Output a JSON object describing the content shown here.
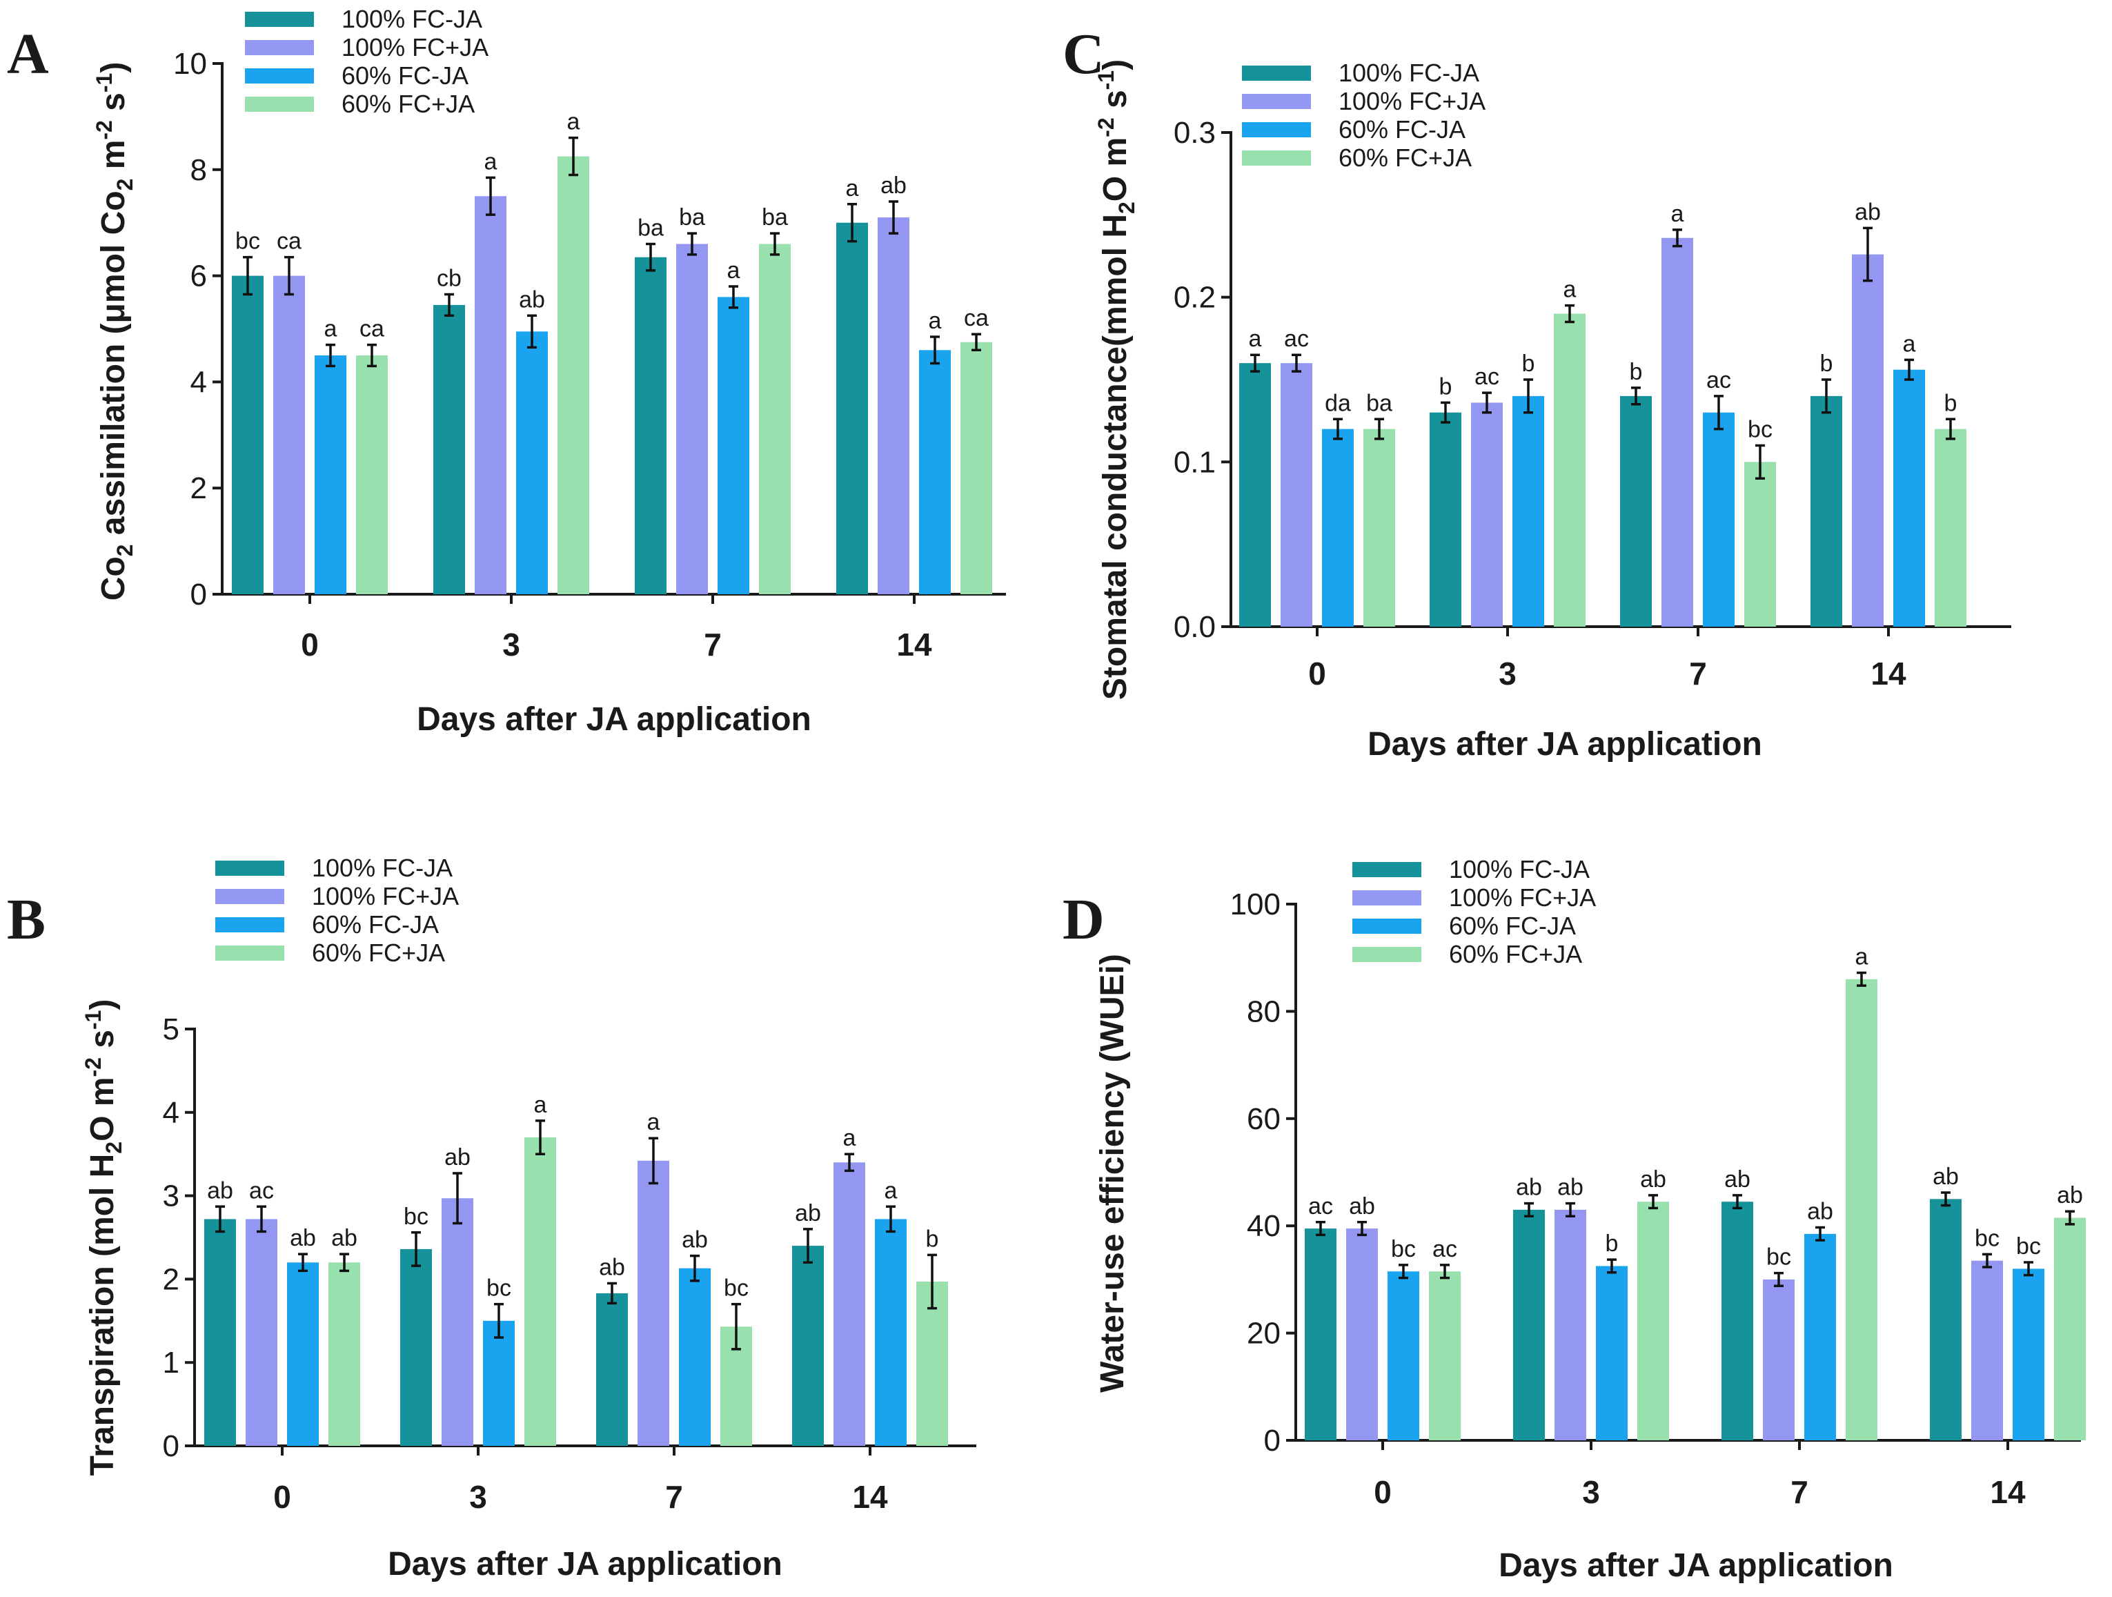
{
  "chart_data": [
    {
      "type": "bar",
      "panel": "A",
      "title": "",
      "xlabel": "Days after JA application",
      "ylabel": "Co2 assimilation (μmol Co2 m-2 s-1)",
      "ylabel_parts": [
        "Co",
        "2",
        " assimilation (",
        "μ",
        "mol Co",
        "2",
        " m",
        "-2",
        " s",
        "-1",
        ")"
      ],
      "ylim": [
        0,
        10
      ],
      "yticks": [
        0,
        2,
        4,
        6,
        8,
        10
      ],
      "categories": [
        "0",
        "3",
        "7",
        "14"
      ],
      "series": [
        {
          "name": "100% FC-JA",
          "values": [
            6.0,
            5.45,
            6.35,
            7.0
          ],
          "errors": [
            0.35,
            0.2,
            0.25,
            0.35
          ],
          "labels": [
            "bc",
            "cb",
            "ba",
            "a"
          ]
        },
        {
          "name": "100% FC+JA",
          "values": [
            6.0,
            7.5,
            6.6,
            7.1
          ],
          "errors": [
            0.35,
            0.35,
            0.2,
            0.3
          ],
          "labels": [
            "ca",
            "a",
            "ba",
            "ab"
          ]
        },
        {
          "name": "60% FC-JA",
          "values": [
            4.5,
            4.95,
            5.6,
            4.6
          ],
          "errors": [
            0.2,
            0.3,
            0.2,
            0.25
          ],
          "labels": [
            "a",
            "ab",
            "a",
            "a"
          ]
        },
        {
          "name": "60% FC+JA",
          "values": [
            4.5,
            8.25,
            6.6,
            4.75
          ],
          "errors": [
            0.2,
            0.35,
            0.2,
            0.15
          ],
          "labels": [
            "ca",
            "a",
            "ba",
            "ca"
          ]
        }
      ]
    },
    {
      "type": "bar",
      "panel": "B",
      "title": "",
      "xlabel": "Days after JA application",
      "ylabel": "Transpiration (mol H2O m-2 s-1)",
      "ylabel_parts": [
        "Transpiration (mol H",
        "2",
        "O m",
        "-2",
        " s",
        "-1",
        ")"
      ],
      "ylim": [
        0,
        5
      ],
      "yticks": [
        0,
        1,
        2,
        3,
        4,
        5
      ],
      "categories": [
        "0",
        "3",
        "7",
        "14"
      ],
      "series": [
        {
          "name": "100% FC-JA",
          "values": [
            2.72,
            2.36,
            1.83,
            2.4
          ],
          "errors": [
            0.15,
            0.2,
            0.12,
            0.2
          ],
          "labels": [
            "ab",
            "bc",
            "ab",
            "ab"
          ]
        },
        {
          "name": "100% FC+JA",
          "values": [
            2.72,
            2.97,
            3.42,
            3.4
          ],
          "errors": [
            0.15,
            0.3,
            0.27,
            0.1
          ],
          "labels": [
            "ac",
            "ab",
            "a",
            "a"
          ]
        },
        {
          "name": "60% FC-JA",
          "values": [
            2.2,
            1.5,
            2.13,
            2.72
          ],
          "errors": [
            0.1,
            0.2,
            0.15,
            0.15
          ],
          "labels": [
            "ab",
            "bc",
            "ab",
            "a"
          ]
        },
        {
          "name": "60% FC+JA",
          "values": [
            2.2,
            3.7,
            1.43,
            1.97
          ],
          "errors": [
            0.1,
            0.2,
            0.27,
            0.32
          ],
          "labels": [
            "ab",
            "a",
            "bc",
            "b"
          ]
        }
      ]
    },
    {
      "type": "bar",
      "panel": "C",
      "title": "",
      "xlabel": "Days after JA application",
      "ylabel": "Stomatal conductance(mmol H2O m-2 s-1)",
      "ylabel_parts": [
        "Stomatal conductance(mmol H",
        "2",
        "O m",
        "-2",
        " s",
        "-1",
        ")"
      ],
      "ylim": [
        0,
        0.3
      ],
      "yticks": [
        0.0,
        0.1,
        0.2,
        0.3
      ],
      "ytick_labels": [
        "0.0",
        "0.1",
        "0.2",
        "0.3"
      ],
      "categories": [
        "0",
        "3",
        "7",
        "14"
      ],
      "series": [
        {
          "name": "100% FC-JA",
          "values": [
            0.16,
            0.13,
            0.14,
            0.14
          ],
          "errors": [
            0.005,
            0.006,
            0.005,
            0.01
          ],
          "labels": [
            "a",
            "b",
            "b",
            "b"
          ]
        },
        {
          "name": "100% FC+JA",
          "values": [
            0.16,
            0.136,
            0.236,
            0.226
          ],
          "errors": [
            0.005,
            0.006,
            0.005,
            0.016
          ],
          "labels": [
            "ac",
            "ac",
            "a",
            "ab"
          ]
        },
        {
          "name": "60% FC-JA",
          "values": [
            0.12,
            0.14,
            0.13,
            0.156
          ],
          "errors": [
            0.006,
            0.01,
            0.01,
            0.006
          ],
          "labels": [
            "da",
            "b",
            "ac",
            "a"
          ]
        },
        {
          "name": "60% FC+JA",
          "values": [
            0.12,
            0.19,
            0.1,
            0.12
          ],
          "errors": [
            0.006,
            0.005,
            0.01,
            0.006
          ],
          "labels": [
            "ba",
            "a",
            "bc",
            "b"
          ]
        }
      ]
    },
    {
      "type": "bar",
      "panel": "D",
      "title": "",
      "xlabel": "Days after JA application",
      "ylabel": "Water-use efficiency (WUEi)",
      "ylabel_parts": [
        "Water-use efficiency (WUEi)"
      ],
      "ylim": [
        0,
        100
      ],
      "yticks": [
        0,
        20,
        40,
        60,
        80,
        100
      ],
      "categories": [
        "0",
        "3",
        "7",
        "14"
      ],
      "series": [
        {
          "name": "100% FC-JA",
          "values": [
            39.5,
            43.0,
            44.5,
            45.0
          ],
          "errors": [
            1.2,
            1.2,
            1.2,
            1.2
          ],
          "labels": [
            "ac",
            "ab",
            "ab",
            "ab"
          ]
        },
        {
          "name": "100% FC+JA",
          "values": [
            39.5,
            43.0,
            30.0,
            33.5
          ],
          "errors": [
            1.2,
            1.2,
            1.2,
            1.2
          ],
          "labels": [
            "ab",
            "ab",
            "bc",
            "bc"
          ]
        },
        {
          "name": "60% FC-JA",
          "values": [
            31.5,
            32.5,
            38.5,
            32.0
          ],
          "errors": [
            1.2,
            1.2,
            1.2,
            1.2
          ],
          "labels": [
            "bc",
            "b",
            "ab",
            "bc"
          ]
        },
        {
          "name": "60% FC+JA",
          "values": [
            31.5,
            44.5,
            86.0,
            41.5
          ],
          "errors": [
            1.2,
            1.2,
            1.2,
            1.2
          ],
          "labels": [
            "ac",
            "ab",
            "a",
            "ab"
          ]
        }
      ]
    }
  ],
  "colors": {
    "100% FC-JA": "#16929a",
    "100% FC+JA": "#9497f2",
    "60% FC-JA": "#1aa4f0",
    "60% FC+JA": "#98e0ae"
  },
  "panel_letters": [
    "A",
    "B",
    "C",
    "D"
  ]
}
